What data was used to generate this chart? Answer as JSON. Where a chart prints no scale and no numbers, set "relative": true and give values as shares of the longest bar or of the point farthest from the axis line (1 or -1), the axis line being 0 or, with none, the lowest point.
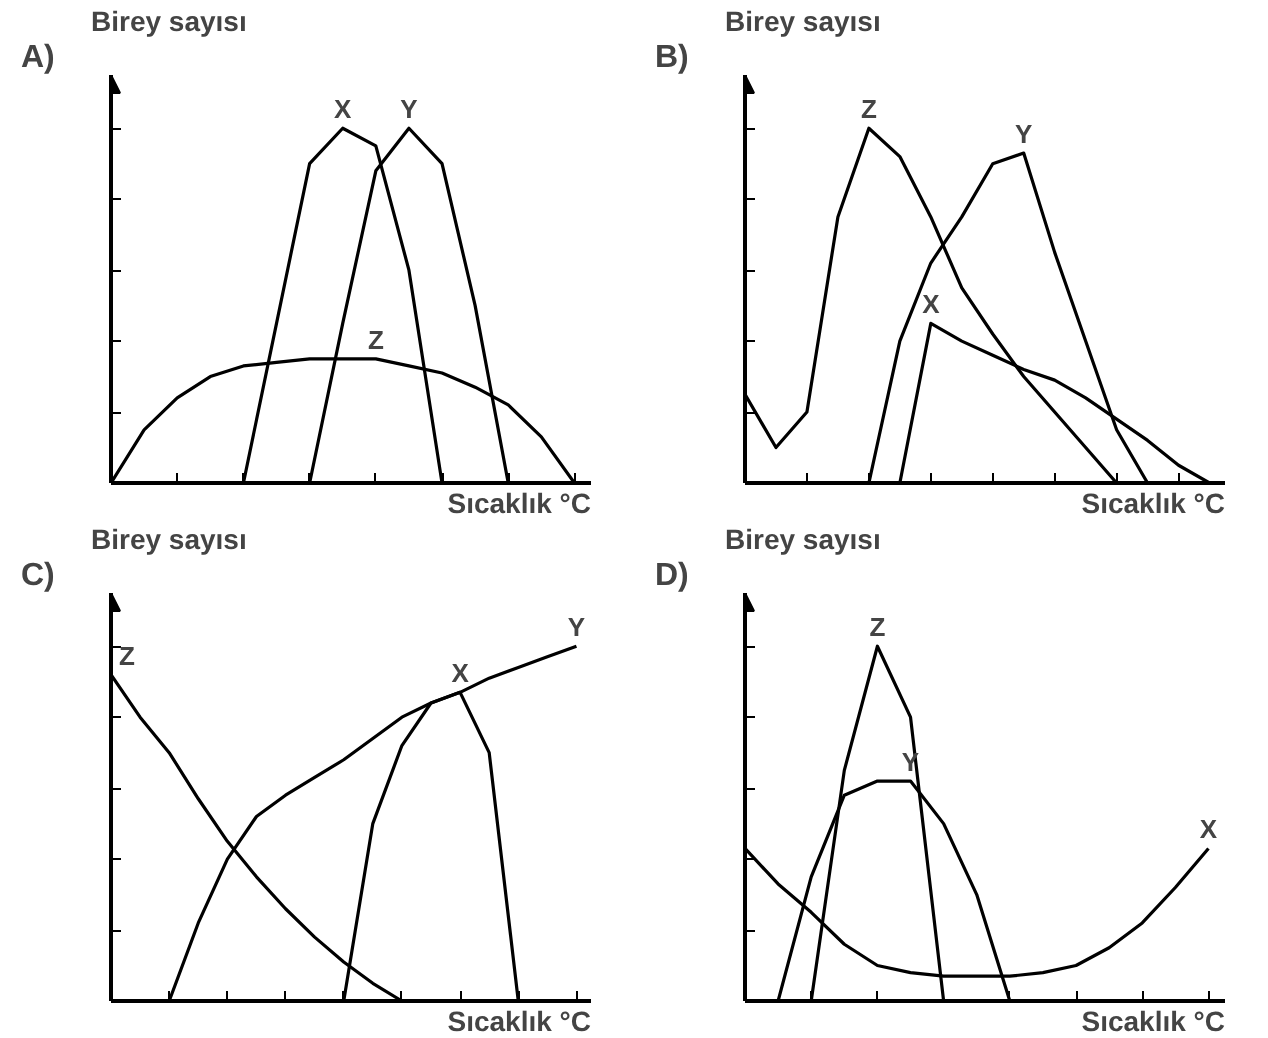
{
  "chart_data": [
    {
      "type": "line",
      "title": "A)",
      "ylabel": "Birey sayısı",
      "xlabel": "Sıcaklık °C",
      "relative": true,
      "line_style": "solid",
      "categories": [
        null,
        null,
        null,
        null,
        null,
        null,
        null,
        null,
        null,
        null,
        null,
        null,
        null,
        null,
        null
      ],
      "series": [
        {
          "name": "X",
          "color": "#000000",
          "values": [
            null,
            null,
            null,
            null,
            0,
            0.45,
            0.9,
            1,
            0.95,
            0.6,
            0,
            null,
            null,
            null,
            null
          ]
        },
        {
          "name": "Y",
          "color": "#000000",
          "values": [
            null,
            null,
            null,
            null,
            null,
            null,
            0,
            0.45,
            0.88,
            1,
            0.9,
            0.5,
            0,
            null,
            null
          ]
        },
        {
          "name": "Z",
          "color": "#000000",
          "values": [
            0,
            0.15,
            0.24,
            0.3,
            0.33,
            0.34,
            0.35,
            0.35,
            0.35,
            0.33,
            0.31,
            0.27,
            0.22,
            0.13,
            0
          ]
        }
      ]
    },
    {
      "type": "line",
      "title": "B)",
      "ylabel": "Birey sayısı",
      "xlabel": "Sıcaklık °C",
      "relative": true,
      "line_style": "solid",
      "categories": [
        null,
        null,
        null,
        null,
        null,
        null,
        null,
        null,
        null,
        null,
        null,
        null,
        null,
        null,
        null,
        null
      ],
      "series": [
        {
          "name": "Z",
          "color": "#000000",
          "values": [
            0.25,
            0.1,
            0.2,
            0.75,
            1,
            0.92,
            0.75,
            0.55,
            0.42,
            0.3,
            0.2,
            0.1,
            0,
            null,
            null,
            null
          ]
        },
        {
          "name": "Y",
          "color": "#000000",
          "values": [
            null,
            null,
            null,
            null,
            0,
            0.4,
            0.62,
            0.75,
            0.9,
            0.93,
            0.65,
            0.4,
            0.15,
            0,
            null,
            null
          ]
        },
        {
          "name": "X",
          "color": "#000000",
          "values": [
            null,
            null,
            null,
            null,
            null,
            0,
            0.45,
            0.4,
            0.36,
            0.32,
            0.29,
            0.24,
            0.18,
            0.12,
            0.05,
            0
          ]
        }
      ]
    },
    {
      "type": "line",
      "title": "C)",
      "ylabel": "Birey sayısı",
      "xlabel": "Sıcaklık °C",
      "relative": true,
      "line_style": "solid",
      "categories": [
        null,
        null,
        null,
        null,
        null,
        null,
        null,
        null,
        null,
        null,
        null,
        null,
        null,
        null,
        null,
        null,
        null
      ],
      "series": [
        {
          "name": "Z",
          "color": "#000000",
          "values": [
            0.92,
            0.8,
            0.7,
            0.57,
            0.45,
            0.35,
            0.26,
            0.18,
            0.11,
            0.05,
            0,
            null,
            null,
            null,
            null,
            null,
            null
          ]
        },
        {
          "name": "Y",
          "color": "#000000",
          "values": [
            null,
            null,
            0,
            0.22,
            0.4,
            0.52,
            0.58,
            0.63,
            0.68,
            0.74,
            0.8,
            0.84,
            0.87,
            0.91,
            0.94,
            0.97,
            1
          ]
        },
        {
          "name": "X",
          "color": "#000000",
          "values": [
            null,
            null,
            null,
            null,
            null,
            null,
            null,
            null,
            0,
            0.5,
            0.72,
            0.84,
            0.87,
            0.7,
            0,
            null,
            null
          ]
        }
      ]
    },
    {
      "type": "line",
      "title": "D)",
      "ylabel": "Birey sayısı",
      "xlabel": "Sıcaklık °C",
      "relative": true,
      "line_style": "solid",
      "categories": [
        null,
        null,
        null,
        null,
        null,
        null,
        null,
        null,
        null,
        null,
        null,
        null,
        null,
        null,
        null
      ],
      "series": [
        {
          "name": "Z",
          "color": "#000000",
          "values": [
            null,
            null,
            0,
            0.65,
            1,
            0.8,
            0,
            null,
            null,
            null,
            null,
            null,
            null,
            null,
            null
          ]
        },
        {
          "name": "Y",
          "color": "#000000",
          "values": [
            null,
            0,
            0.35,
            0.58,
            0.62,
            0.62,
            0.5,
            0.3,
            0,
            null,
            null,
            null,
            null,
            null,
            null
          ]
        },
        {
          "name": "X",
          "color": "#000000",
          "values": [
            0.43,
            0.33,
            0.25,
            0.16,
            0.1,
            0.08,
            0.07,
            0.07,
            0.07,
            0.08,
            0.1,
            0.15,
            0.22,
            0.32,
            0.43
          ]
        }
      ]
    }
  ]
}
